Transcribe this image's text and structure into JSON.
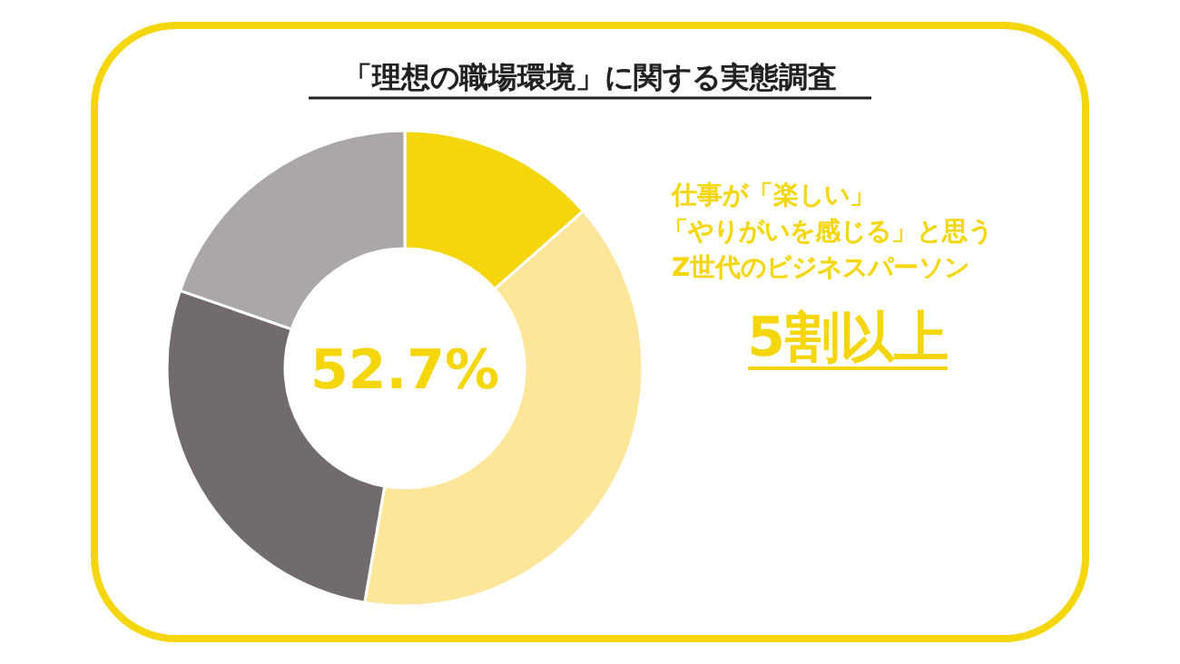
{
  "chart_data": {
    "type": "donut",
    "title": "「理想の職場環境」に関する実態調査",
    "categories": [
      null,
      null,
      null,
      null
    ],
    "values": [
      13.5,
      39.2,
      27.6,
      19.7
    ],
    "colors": [
      "#f5d60a",
      "#fde59a",
      "#716c6b",
      "#aba7a6"
    ],
    "annotations": [
      "52.7%",
      "仕事が「楽しい」",
      "「やりがいを感じる」と思う",
      "Z世代のビジネスパーソン",
      "5割以上"
    ]
  }
}
